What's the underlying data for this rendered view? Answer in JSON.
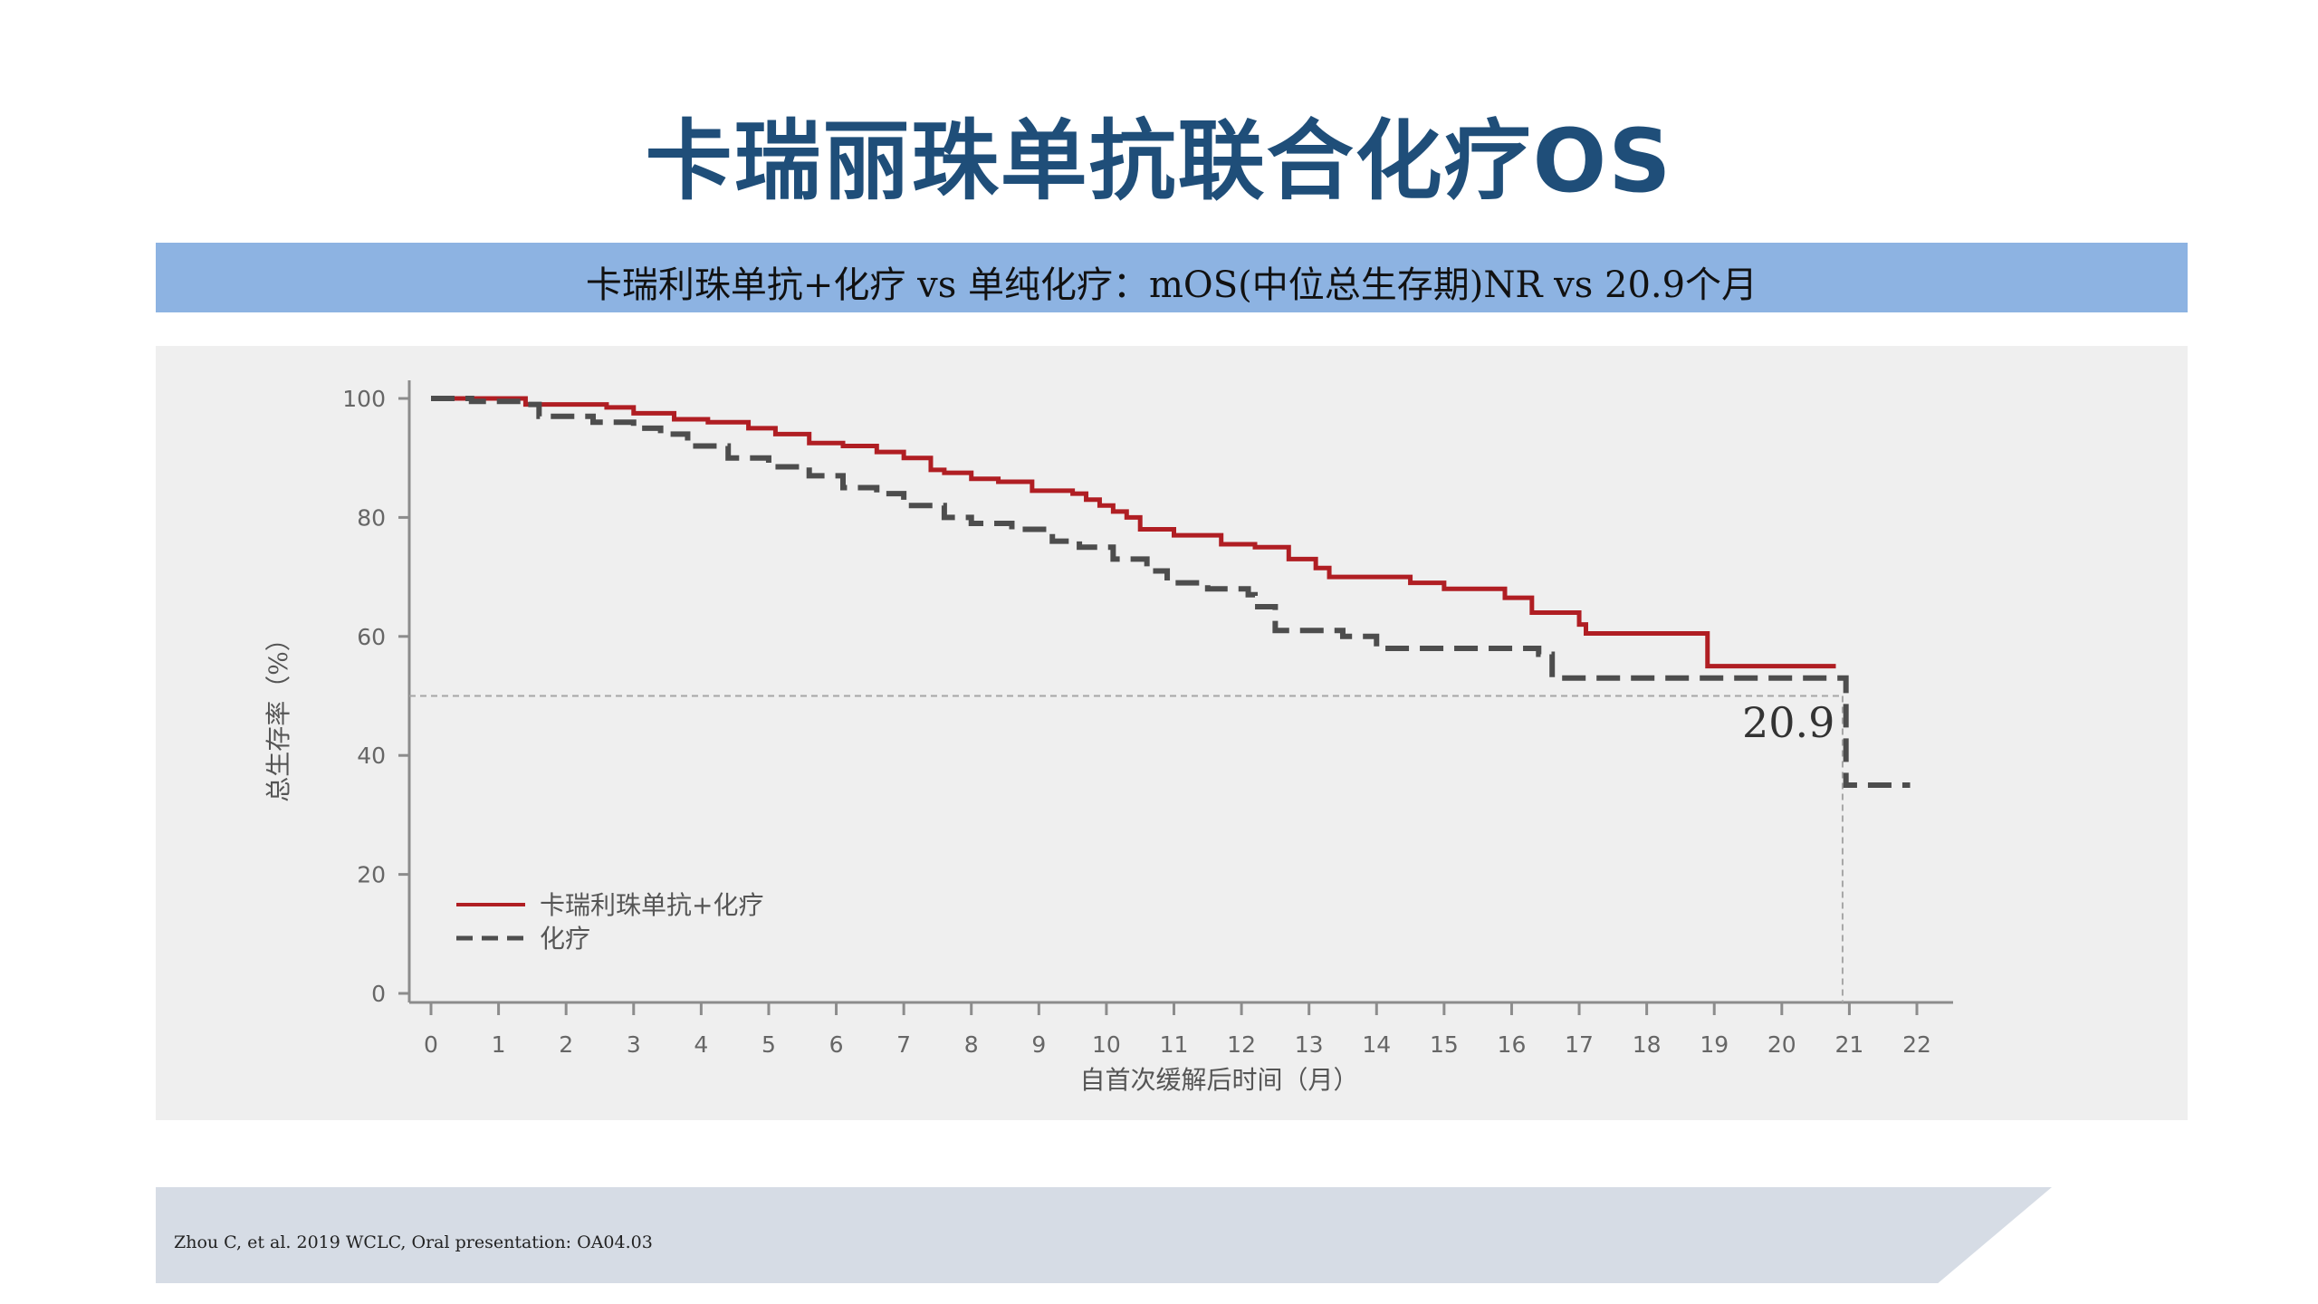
{
  "page": {
    "title": "卡瑞丽珠单抗联合化疗OS",
    "banner": "卡瑞利珠单抗+化疗 vs 单纯化疗：mOS(中位总生存期)NR vs 20.9个月",
    "footer": "Zhou C, et al. 2019 WCLC, Oral presentation: OA04.03"
  },
  "chart_data": {
    "type": "line",
    "step": true,
    "xlabel": "自首次缓解后时间（月）",
    "ylabel": "总生存率（%）",
    "xlim": [
      0,
      22
    ],
    "ylim": [
      0,
      100
    ],
    "xticks": [
      0,
      1,
      2,
      3,
      4,
      5,
      6,
      7,
      8,
      9,
      10,
      11,
      12,
      13,
      14,
      15,
      16,
      17,
      18,
      19,
      20,
      21,
      22
    ],
    "yticks": [
      0,
      20,
      40,
      60,
      80,
      100
    ],
    "reference_line_y": 50,
    "median_marker_x": 20.9,
    "median_label": "20.9",
    "legend_position": "bottom-left",
    "series": [
      {
        "name": "卡瑞利珠单抗+化疗",
        "color": "#b01e23",
        "style": "solid",
        "x": [
          0,
          1.4,
          2.6,
          3.0,
          3.6,
          4.1,
          4.7,
          5.1,
          5.6,
          6.1,
          6.6,
          7.0,
          7.4,
          7.6,
          8.0,
          8.4,
          8.9,
          9.5,
          9.7,
          9.9,
          10.1,
          10.3,
          10.5,
          11.0,
          11.7,
          12.2,
          12.7,
          13.1,
          13.3,
          14.5,
          15.0,
          15.9,
          16.3,
          17.0,
          17.1,
          18.9,
          20.8
        ],
        "y": [
          100,
          99,
          98.5,
          97.5,
          96.5,
          96,
          95,
          94,
          92.5,
          92,
          91,
          90,
          88,
          87.5,
          86.5,
          86,
          84.5,
          84,
          83,
          82,
          81,
          80,
          78,
          77,
          75.5,
          75,
          73,
          71.5,
          70,
          69,
          68,
          66.5,
          64,
          62,
          60.5,
          55,
          55
        ]
      },
      {
        "name": "化疗",
        "color": "#4d4d4d",
        "style": "dashed",
        "x": [
          0,
          0.6,
          1.4,
          1.6,
          2.4,
          3.0,
          3.4,
          3.8,
          4.4,
          5.0,
          5.6,
          6.1,
          6.6,
          7.0,
          7.6,
          8.0,
          8.6,
          9.2,
          9.6,
          10.1,
          10.6,
          10.9,
          11.5,
          12.1,
          12.2,
          12.5,
          13.1,
          13.5,
          14.0,
          15.5,
          16.4,
          16.6,
          18.0,
          20.9,
          20.95,
          21.9
        ],
        "y": [
          100,
          99.5,
          99,
          97,
          96,
          95,
          94,
          92,
          90,
          88.5,
          87,
          85,
          84,
          82,
          80,
          79,
          78,
          76,
          75,
          73,
          71,
          69,
          68,
          67,
          65,
          61,
          61,
          60,
          58,
          58,
          57,
          53,
          53,
          53,
          35,
          35
        ]
      }
    ]
  }
}
